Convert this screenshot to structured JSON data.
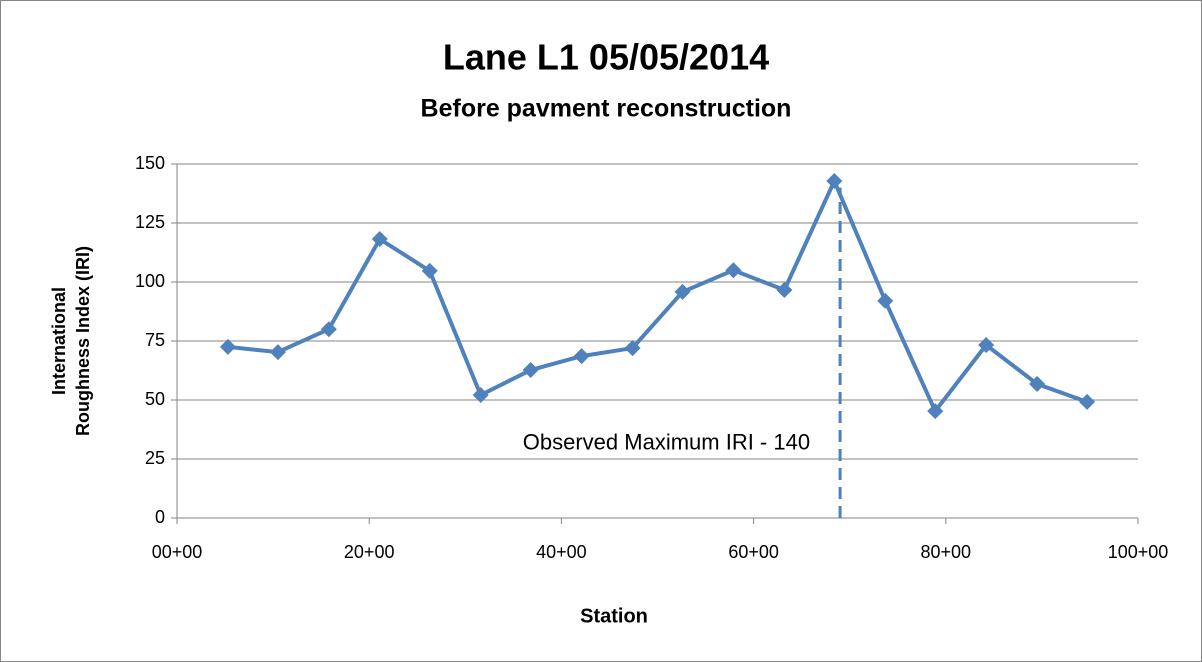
{
  "chart_data": {
    "type": "line",
    "title": "Lane L1 05/05/2014",
    "subtitle": "Before pavment reconstruction",
    "xlabel": "Station",
    "ylabel": [
      "International",
      "Roughness Index (IRI)"
    ],
    "x": [
      5.3,
      10.5,
      15.8,
      21.1,
      26.3,
      31.6,
      36.8,
      42.1,
      47.4,
      52.6,
      57.9,
      63.2,
      68.4,
      73.7,
      78.9,
      84.2,
      89.5,
      94.7
    ],
    "series": [
      {
        "name": "IRI",
        "color": "#4f81bd",
        "values": [
          72.5,
          70.3,
          80,
          118.2,
          104.7,
          52.1,
          62.7,
          68.6,
          72,
          95.8,
          105,
          96.6,
          142.8,
          92,
          45.3,
          73.3,
          56.8,
          49.2
        ]
      }
    ],
    "xlim": [
      0,
      100
    ],
    "xticks": [
      {
        "value": 0,
        "label": "00+00"
      },
      {
        "value": 20,
        "label": "20+00"
      },
      {
        "value": 40,
        "label": "40+00"
      },
      {
        "value": 60,
        "label": "60+00"
      },
      {
        "value": 80,
        "label": "80+00"
      },
      {
        "value": 100,
        "label": "100+00"
      }
    ],
    "ylim": [
      0,
      150
    ],
    "yticks": [
      0,
      25,
      50,
      75,
      100,
      125,
      150
    ],
    "grid": true,
    "reference_line": {
      "x": 69,
      "y": 140,
      "label": "Observed Maximum IRI - 140",
      "color": "#4f81bd"
    }
  }
}
